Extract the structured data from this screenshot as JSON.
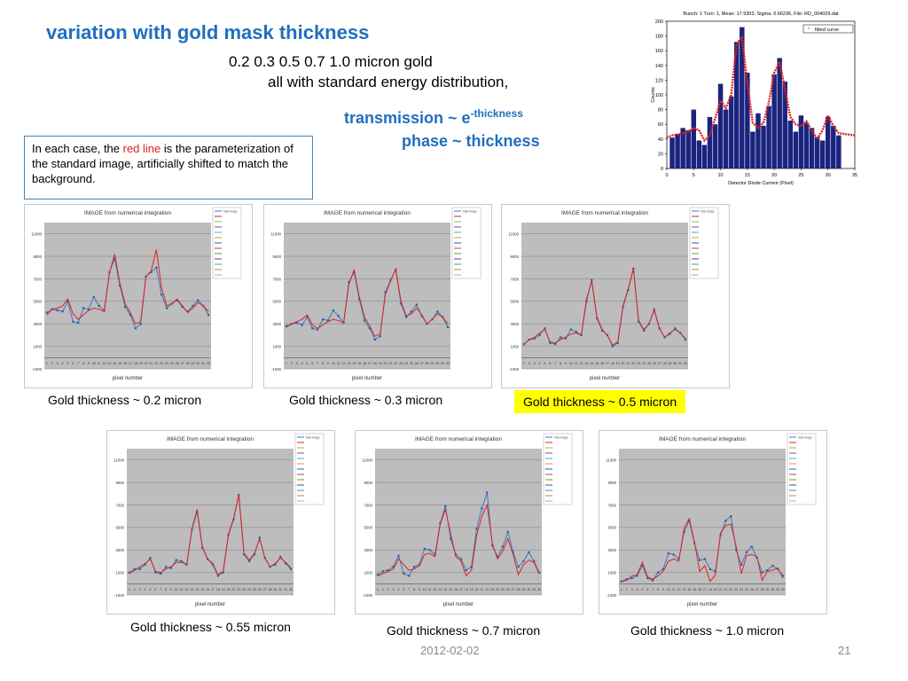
{
  "slide": {
    "title": "variation with gold mask thickness",
    "subtitle_line1": "0.2   0.3   0.5   0.7   1.0 micron gold",
    "subtitle_line2": "all with standard energy distribution,",
    "relation1_left": "transmission    ~   e",
    "relation1_sup": "-thickness",
    "relation2": "phase   ~   thickness",
    "note_part1": "In each case, the ",
    "note_red": "red line",
    "note_part2": " is the parameterization of the standard image, artificially shifted to match the background.",
    "footer_date": "2012-02-02",
    "page_number": "21"
  },
  "colors": {
    "title_blue": "#1f6fbf",
    "highlight": "#ffff00",
    "fit_red": "#e02020",
    "bar_navy": "#1a237e",
    "data_blue": "#3c78c8"
  },
  "captions": [
    "Gold thickness ~ 0.2 micron",
    "Gold thickness ~ 0.3 micron",
    "Gold thickness ~ 0.5 micron",
    "Gold thickness ~ 0.55 micron",
    "Gold thickness ~ 0.7 micron",
    "Gold thickness ~ 1.0 micron"
  ],
  "chart_data": [
    {
      "type": "bar",
      "title": "Bunch: 1  Turn: 1,  Mean: 17.9303,  Sigma: 0.66236,  File: RD_004029.dat",
      "xlabel": "Detector Diode Current (Pixel)",
      "ylabel": "Counts",
      "xlim": [
        0,
        35
      ],
      "ylim": [
        0,
        200
      ],
      "xticks": [
        0,
        5,
        10,
        15,
        20,
        25,
        30,
        35
      ],
      "yticks": [
        0,
        20,
        40,
        60,
        80,
        100,
        120,
        140,
        160,
        180,
        200
      ],
      "legend": "fitted curve",
      "legend_position": "top-right",
      "x": [
        1,
        2,
        3,
        4,
        5,
        6,
        7,
        8,
        9,
        10,
        11,
        12,
        13,
        14,
        15,
        16,
        17,
        18,
        19,
        20,
        21,
        22,
        23,
        24,
        25,
        26,
        27,
        28,
        29,
        30,
        31,
        32
      ],
      "values": [
        42,
        47,
        55,
        52,
        80,
        38,
        32,
        70,
        60,
        115,
        80,
        98,
        172,
        192,
        130,
        50,
        75,
        58,
        85,
        128,
        150,
        118,
        65,
        50,
        72,
        62,
        55,
        43,
        38,
        70,
        58,
        45
      ],
      "fit": [
        45,
        46,
        48,
        50,
        55,
        52,
        38,
        45,
        68,
        92,
        82,
        100,
        170,
        178,
        115,
        62,
        55,
        62,
        90,
        130,
        145,
        108,
        70,
        60,
        58,
        64,
        52,
        40,
        52,
        72,
        58,
        48
      ]
    },
    {
      "type": "line",
      "title": "IMAGE from numerical integration",
      "xlabel": "pixel number",
      "ylabel": "",
      "ylim": [
        -1000,
        12000
      ],
      "yticks": [
        -1000,
        1000,
        3000,
        5000,
        7000,
        9000,
        11000
      ],
      "xticks": [
        1,
        2,
        3,
        4,
        5,
        6,
        7,
        8,
        9,
        10,
        11,
        12,
        13,
        14,
        15,
        16,
        17,
        18,
        19,
        20,
        21,
        22,
        23,
        24,
        25,
        26,
        27,
        28,
        29,
        30,
        31,
        32
      ],
      "legend": [
        "total image",
        "",
        "",
        "",
        "",
        "",
        "",
        "",
        "",
        "",
        "",
        "",
        ""
      ],
      "series": [
        {
          "values": [
            4000,
            4300,
            4200,
            4100,
            5000,
            3200,
            3100,
            4400,
            4300,
            5400,
            4600,
            4200,
            7600,
            8800,
            6400,
            4500,
            3800,
            2600,
            3000,
            7200,
            7600,
            8000,
            5600,
            4400,
            4800,
            5100,
            4500,
            4100,
            4600,
            5100,
            4600,
            3800
          ]
        },
        {
          "values": [
            3800,
            4300,
            4400,
            4600,
            5200,
            3900,
            3400,
            3800,
            4200,
            4400,
            4300,
            4100,
            7500,
            9200,
            6600,
            4800,
            4000,
            3000,
            3200,
            7200,
            7700,
            9600,
            6200,
            4600,
            4800,
            5200,
            4600,
            4000,
            4400,
            4900,
            4600,
            4100
          ]
        }
      ]
    },
    {
      "type": "line",
      "title": "IMAGE from numerical integration",
      "xlabel": "pixel number",
      "ylabel": "",
      "ylim": [
        -1000,
        12000
      ],
      "yticks": [
        -1000,
        1000,
        3000,
        5000,
        7000,
        9000,
        11000
      ],
      "xticks": [
        1,
        2,
        3,
        4,
        5,
        6,
        7,
        8,
        9,
        10,
        11,
        12,
        13,
        14,
        15,
        16,
        17,
        18,
        19,
        20,
        21,
        22,
        23,
        24,
        25,
        26,
        27,
        28,
        29,
        30,
        31,
        32
      ],
      "legend": [
        "total image",
        "",
        "",
        "",
        "",
        "",
        "",
        "",
        "",
        "",
        "",
        "",
        ""
      ],
      "series": [
        {
          "values": [
            2800,
            3000,
            3100,
            2900,
            3600,
            2600,
            2500,
            3400,
            3300,
            4200,
            3700,
            3100,
            6700,
            7600,
            5200,
            3300,
            2600,
            1600,
            1900,
            5800,
            6900,
            7800,
            4800,
            3600,
            4100,
            4700,
            3700,
            3000,
            3400,
            4100,
            3600,
            2700
          ]
        },
        {
          "values": [
            2700,
            3000,
            3200,
            3400,
            3800,
            2900,
            2600,
            2900,
            3200,
            3400,
            3300,
            3100,
            6500,
            7800,
            5400,
            3600,
            2800,
            1900,
            2100,
            5600,
            6800,
            7900,
            5000,
            3700,
            3900,
            4400,
            3800,
            3000,
            3400,
            3900,
            3600,
            3000
          ]
        }
      ]
    },
    {
      "type": "line",
      "title": "IMAGE from numerical integration",
      "xlabel": "pixel number",
      "ylabel": "",
      "ylim": [
        -1000,
        12000
      ],
      "yticks": [
        -1000,
        1000,
        3000,
        5000,
        7000,
        9000,
        11000
      ],
      "xticks": [
        1,
        2,
        3,
        4,
        5,
        6,
        7,
        8,
        9,
        10,
        11,
        12,
        13,
        14,
        15,
        16,
        17,
        18,
        19,
        20,
        21,
        22,
        23,
        24,
        25,
        26,
        27,
        28,
        29,
        30,
        31,
        32
      ],
      "legend": [
        "total image",
        "",
        "",
        "",
        "",
        "",
        "",
        "",
        "",
        "",
        "",
        "",
        ""
      ],
      "series": [
        {
          "values": [
            1200,
            1600,
            1700,
            2000,
            2600,
            1300,
            1200,
            1800,
            1700,
            2500,
            2300,
            2000,
            5000,
            6900,
            3500,
            2400,
            2000,
            1000,
            1300,
            4500,
            6000,
            7900,
            3200,
            2400,
            3000,
            4300,
            2600,
            1800,
            2100,
            2600,
            2200,
            1600
          ]
        },
        {
          "values": [
            1200,
            1600,
            1800,
            2200,
            2500,
            1400,
            1300,
            1600,
            1800,
            2100,
            2200,
            2000,
            5200,
            6800,
            3600,
            2500,
            2000,
            1100,
            1400,
            4600,
            6100,
            7900,
            3300,
            2500,
            3000,
            4200,
            2600,
            1800,
            2200,
            2500,
            2200,
            1700
          ]
        }
      ]
    },
    {
      "type": "line",
      "title": "IMAGE from numerical integration",
      "xlabel": "pixel number",
      "ylabel": "",
      "ylim": [
        -1000,
        12000
      ],
      "yticks": [
        -1000,
        1000,
        3000,
        5000,
        7000,
        9000,
        11000
      ],
      "xticks": [
        1,
        2,
        3,
        4,
        5,
        6,
        7,
        8,
        9,
        10,
        11,
        12,
        13,
        14,
        15,
        16,
        17,
        18,
        19,
        20,
        21,
        22,
        23,
        24,
        25,
        26,
        27,
        28,
        29,
        30,
        31,
        32
      ],
      "legend": [
        "total image",
        "",
        "",
        "",
        "",
        "",
        "",
        "",
        "",
        "",
        "",
        "",
        ""
      ],
      "series": [
        {
          "values": [
            1000,
            1300,
            1300,
            1700,
            2300,
            1000,
            900,
            1500,
            1400,
            2100,
            2000,
            1700,
            4800,
            6400,
            3200,
            2200,
            1700,
            700,
            1000,
            4300,
            5700,
            7900,
            2600,
            2000,
            2600,
            4100,
            2300,
            1500,
            1700,
            2400,
            1800,
            1300
          ]
        },
        {
          "values": [
            900,
            1200,
            1500,
            1800,
            2200,
            1100,
            1000,
            1300,
            1500,
            1900,
            1900,
            1700,
            4900,
            6600,
            3300,
            2200,
            1800,
            800,
            1100,
            4400,
            5800,
            7900,
            2700,
            2100,
            2700,
            4000,
            2300,
            1500,
            1800,
            2300,
            1900,
            1400
          ]
        }
      ]
    },
    {
      "type": "line",
      "title": "IMAGE from numerical integration",
      "xlabel": "pixel number",
      "ylabel": "",
      "ylim": [
        -1000,
        12000
      ],
      "yticks": [
        -1000,
        1000,
        3000,
        5000,
        7000,
        9000,
        11000
      ],
      "xticks": [
        1,
        2,
        3,
        4,
        5,
        6,
        7,
        8,
        9,
        10,
        11,
        12,
        13,
        14,
        15,
        16,
        17,
        18,
        19,
        20,
        21,
        22,
        23,
        24,
        25,
        26,
        27,
        28,
        29,
        30,
        31,
        32
      ],
      "legend": [
        "total image",
        "",
        "",
        "",
        "",
        "",
        "",
        "",
        "",
        "",
        "",
        "",
        ""
      ],
      "series": [
        {
          "values": [
            800,
            1100,
            1200,
            1500,
            2500,
            900,
            700,
            1500,
            1700,
            3100,
            3000,
            2600,
            5400,
            6900,
            4000,
            2600,
            2200,
            1200,
            1500,
            4900,
            6700,
            8100,
            3400,
            2400,
            3300,
            4600,
            2800,
            1500,
            2000,
            2800,
            2000,
            1000
          ]
        },
        {
          "values": [
            700,
            900,
            1100,
            1300,
            2200,
            1700,
            1200,
            1300,
            1600,
            2600,
            2700,
            2400,
            5300,
            6600,
            4500,
            2400,
            2000,
            700,
            1200,
            4300,
            6000,
            7000,
            3600,
            2200,
            2900,
            4000,
            2600,
            800,
            1700,
            2100,
            1900,
            900
          ]
        }
      ]
    },
    {
      "type": "line",
      "title": "IMAGE from numerical integration",
      "xlabel": "pixel number",
      "ylabel": "",
      "ylim": [
        -1000,
        12000
      ],
      "yticks": [
        -1000,
        1000,
        3000,
        5000,
        7000,
        9000,
        11000
      ],
      "xticks": [
        1,
        2,
        3,
        4,
        5,
        6,
        7,
        8,
        9,
        10,
        11,
        12,
        13,
        14,
        15,
        16,
        17,
        18,
        19,
        20,
        21,
        22,
        23,
        24,
        25,
        26,
        27,
        28,
        29,
        30,
        31,
        32
      ],
      "legend": [
        "total image",
        "",
        "",
        "",
        "",
        "",
        "",
        "",
        "",
        "",
        "",
        "",
        ""
      ],
      "series": [
        {
          "values": [
            200,
            400,
            500,
            700,
            1600,
            500,
            300,
            1000,
            1300,
            2700,
            2600,
            2200,
            4600,
            5600,
            3600,
            2100,
            2200,
            1300,
            1100,
            4300,
            5600,
            6000,
            3000,
            1700,
            2800,
            3300,
            2300,
            1000,
            1200,
            1600,
            1300,
            700
          ]
        },
        {
          "values": [
            200,
            300,
            700,
            800,
            1900,
            600,
            400,
            700,
            1100,
            2000,
            2200,
            2000,
            4900,
            5800,
            3700,
            1100,
            1600,
            200,
            800,
            4500,
            5200,
            5300,
            3300,
            900,
            2500,
            2600,
            2400,
            300,
            1100,
            1200,
            1400,
            500
          ]
        }
      ]
    }
  ]
}
